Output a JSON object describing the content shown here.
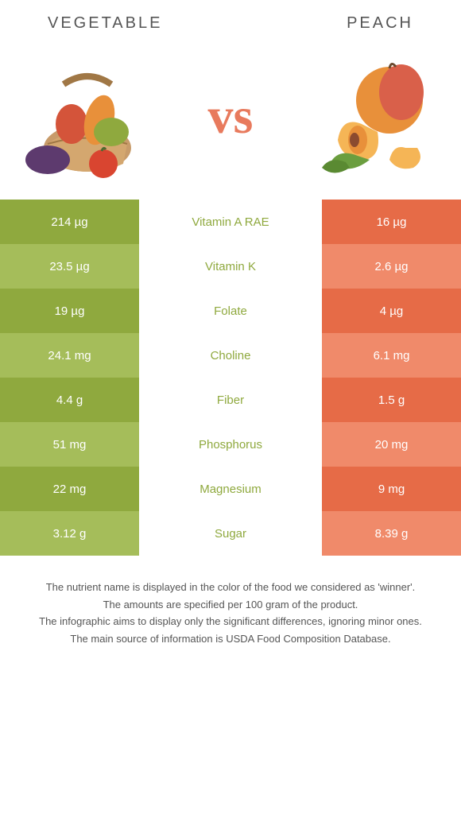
{
  "header": {
    "left_title": "Vegetable",
    "right_title": "Peach"
  },
  "vs_label": "vs",
  "colors": {
    "left_odd": "#8fa93e",
    "left_even": "#a5bd5a",
    "right_odd": "#e66b47",
    "right_even": "#f08a6a",
    "vs_color": "#e87a5d",
    "header_text": "#555555",
    "white": "#ffffff"
  },
  "rows": [
    {
      "left": "214 µg",
      "label": "Vitamin A RAE",
      "right": "16 µg",
      "winner": "left"
    },
    {
      "left": "23.5 µg",
      "label": "Vitamin K",
      "right": "2.6 µg",
      "winner": "left"
    },
    {
      "left": "19 µg",
      "label": "Folate",
      "right": "4 µg",
      "winner": "left"
    },
    {
      "left": "24.1 mg",
      "label": "Choline",
      "right": "6.1 mg",
      "winner": "left"
    },
    {
      "left": "4.4 g",
      "label": "Fiber",
      "right": "1.5 g",
      "winner": "left"
    },
    {
      "left": "51 mg",
      "label": "Phosphorus",
      "right": "20 mg",
      "winner": "left"
    },
    {
      "left": "22 mg",
      "label": "Magnesium",
      "right": "9 mg",
      "winner": "left"
    },
    {
      "left": "3.12 g",
      "label": "Sugar",
      "right": "8.39 g",
      "winner": "left"
    }
  ],
  "footer": {
    "line1": "The nutrient name is displayed in the color of the food we considered as 'winner'.",
    "line2": "The amounts are specified per 100 gram of the product.",
    "line3": "The infographic aims to display only the significant differences, ignoring minor ones.",
    "line4": "The main source of information is USDA Food Composition Database."
  }
}
